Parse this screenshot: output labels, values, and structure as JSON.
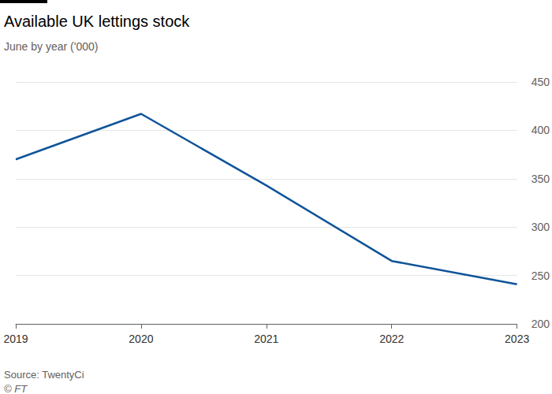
{
  "chart_data": {
    "type": "line",
    "title": "Available UK lettings stock",
    "subtitle": "June by year ('000)",
    "source": "Source: TwentyCi",
    "credit": "© FT",
    "categories": [
      "2019",
      "2020",
      "2021",
      "2022",
      "2023"
    ],
    "values": [
      370,
      417,
      343,
      265,
      241
    ],
    "color": "#0f5499",
    "ylim": [
      200,
      450
    ],
    "yticks": [
      200,
      250,
      300,
      350,
      400,
      450
    ],
    "grid": true
  }
}
